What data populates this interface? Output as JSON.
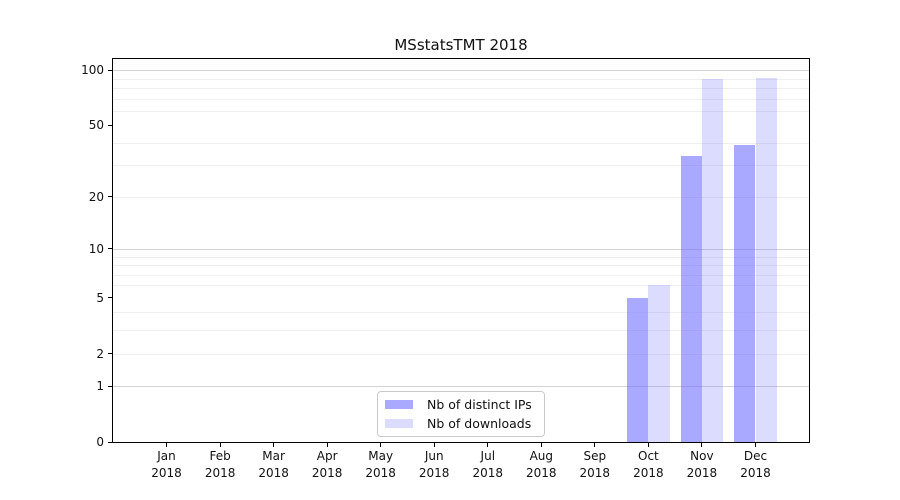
{
  "title": "MSstatsTMT 2018",
  "legend": {
    "items": [
      {
        "label": "Nb of distinct IPs",
        "color": "rgba(102,102,255,0.56)"
      },
      {
        "label": "Nb of downloads",
        "color": "rgba(102,102,255,0.23)"
      }
    ]
  },
  "axes": {
    "y_ticks": [
      {
        "label": "100",
        "value": 100
      },
      {
        "label": "50",
        "value": 50
      },
      {
        "label": "20",
        "value": 20
      },
      {
        "label": "10",
        "value": 10
      },
      {
        "label": "5",
        "value": 5
      },
      {
        "label": "2",
        "value": 2
      },
      {
        "label": "1",
        "value": 1
      },
      {
        "label": "0",
        "value": 0
      }
    ],
    "x_ticks": [
      {
        "month": "Jan",
        "year": "2018"
      },
      {
        "month": "Feb",
        "year": "2018"
      },
      {
        "month": "Mar",
        "year": "2018"
      },
      {
        "month": "Apr",
        "year": "2018"
      },
      {
        "month": "May",
        "year": "2018"
      },
      {
        "month": "Jun",
        "year": "2018"
      },
      {
        "month": "Jul",
        "year": "2018"
      },
      {
        "month": "Aug",
        "year": "2018"
      },
      {
        "month": "Sep",
        "year": "2018"
      },
      {
        "month": "Oct",
        "year": "2018"
      },
      {
        "month": "Nov",
        "year": "2018"
      },
      {
        "month": "Dec",
        "year": "2018"
      }
    ]
  },
  "chart_data": {
    "type": "bar",
    "title": "MSstatsTMT 2018",
    "categories": [
      "Jan 2018",
      "Feb 2018",
      "Mar 2018",
      "Apr 2018",
      "May 2018",
      "Jun 2018",
      "Jul 2018",
      "Aug 2018",
      "Sep 2018",
      "Oct 2018",
      "Nov 2018",
      "Dec 2018"
    ],
    "series": [
      {
        "name": "Nb of distinct IPs",
        "color": "rgba(102,102,255,0.56)",
        "values": [
          0,
          0,
          0,
          0,
          0,
          0,
          0,
          0,
          0,
          5,
          34,
          39
        ]
      },
      {
        "name": "Nb of downloads",
        "color": "rgba(102,102,255,0.23)",
        "values": [
          0,
          0,
          0,
          0,
          0,
          0,
          0,
          0,
          0,
          6,
          89,
          91
        ]
      }
    ],
    "xlabel": "",
    "ylabel": "",
    "yscale": "log1p",
    "ylim": [
      0,
      115
    ],
    "y_tick_values": [
      0,
      1,
      2,
      5,
      10,
      20,
      50,
      100
    ],
    "grid_major_values": [
      1,
      10,
      100
    ],
    "grid_minor_values": [
      2,
      3,
      4,
      6,
      7,
      8,
      9,
      20,
      30,
      40,
      60,
      70,
      80,
      90
    ],
    "grid": "on",
    "legend_position": "lower center inside axes"
  },
  "colors": {
    "grid_major": "#d4d4d4",
    "grid_minor": "#efefef",
    "spine": "#000000",
    "text": "#111111"
  }
}
